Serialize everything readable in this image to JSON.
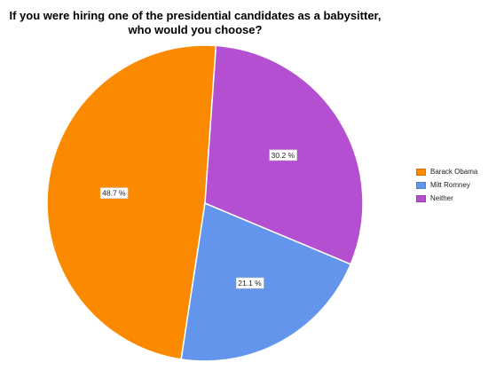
{
  "chart_data": {
    "type": "pie",
    "title_lines": [
      "If you were hiring one of the presidential candidates as a babysitter,",
      "who would you choose?"
    ],
    "slices": [
      {
        "label": "Barack Obama",
        "value": 48.7,
        "display": "48.7 %",
        "color": "#fb8a00"
      },
      {
        "label": "Mitt Romney",
        "value": 21.1,
        "display": "21.1 %",
        "color": "#6495ed"
      },
      {
        "label": "Neither",
        "value": 30.2,
        "display": "30.2 %",
        "color": "#b44fd2"
      }
    ],
    "legend": {
      "placement": "right",
      "items": [
        "Barack Obama",
        "Mitt Romney",
        "Neither"
      ]
    }
  }
}
